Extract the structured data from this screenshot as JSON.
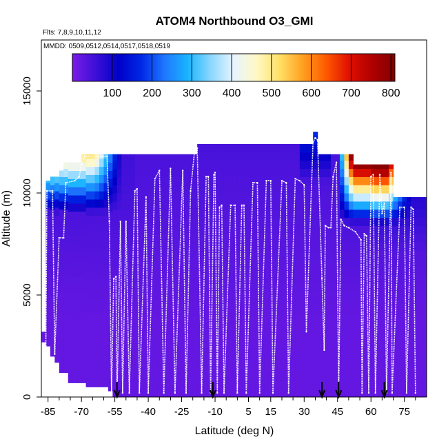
{
  "chart_data": {
    "type": "heatmap",
    "title": "ATOM4 Northbound O3_GMI",
    "flights_label": "Flts: 7,8,9,10,11,12",
    "dates_label": "MMDD: 0509,0512,0514,0517,0518,0519",
    "xlabel": "Latitude (deg N)",
    "ylabel": "Altitude (m)",
    "xlim": [
      -88,
      85
    ],
    "ylim": [
      0,
      17500
    ],
    "x_ticks": [
      -85,
      -70,
      -55,
      -40,
      -25,
      -10,
      5,
      15,
      30,
      45,
      60,
      75
    ],
    "x_tick_labels": [
      "-85",
      "-70",
      "-55",
      "-40",
      "-25",
      "-10",
      "5",
      "15",
      "30",
      "45",
      "60",
      "75"
    ],
    "x_minor_ticks": [
      -80,
      -75,
      -65,
      -60,
      -50,
      -45,
      -35,
      -30,
      -20,
      -15,
      -5,
      0,
      10,
      20,
      25,
      35,
      40,
      50,
      55,
      65,
      70,
      80
    ],
    "y_ticks": [
      0,
      5000,
      10000,
      15000
    ],
    "y_tick_labels": [
      "0",
      "5000",
      "10000",
      "15000"
    ],
    "colorbar": {
      "min": 0,
      "max": 810,
      "ticks": [
        100,
        200,
        300,
        400,
        500,
        600,
        700,
        800
      ],
      "tick_labels": [
        "100",
        "200",
        "300",
        "400",
        "500",
        "600",
        "700",
        "800"
      ],
      "colors": [
        "#7a1ce6",
        "#3d10d8",
        "#0000c8",
        "#0028e6",
        "#1f78ff",
        "#19b4ff",
        "#8ad7ff",
        "#e8f4ff",
        "#fff8c4",
        "#ffe066",
        "#ffa020",
        "#ff5a00",
        "#e01000",
        "#b00000",
        "#800000"
      ]
    },
    "flight_profile": [
      [
        -86,
        2500
      ],
      [
        -85.5,
        10100
      ],
      [
        -83,
        10100
      ],
      [
        -82,
        2100
      ],
      [
        -80,
        7800
      ],
      [
        -78,
        7800
      ],
      [
        -77,
        10500
      ],
      [
        -73,
        10600
      ],
      [
        -71,
        10800
      ],
      [
        -70,
        11400
      ],
      [
        -68.5,
        11800
      ],
      [
        -58.5,
        11800
      ],
      [
        -57.5,
        8600
      ],
      [
        -56.5,
        200
      ],
      [
        -55.5,
        5800
      ],
      [
        -54.5,
        5900
      ],
      [
        -54,
        200
      ],
      [
        -52.5,
        8600
      ],
      [
        -51.5,
        200
      ],
      [
        -50,
        8600
      ],
      [
        -48.5,
        200
      ],
      [
        -46,
        10100
      ],
      [
        -45,
        10200
      ],
      [
        -44,
        200
      ],
      [
        -41,
        9800
      ],
      [
        -40,
        200
      ],
      [
        -37,
        10700
      ],
      [
        -35,
        11100
      ],
      [
        -33,
        200
      ],
      [
        -30,
        11200
      ],
      [
        -28,
        200
      ],
      [
        -24.5,
        11100
      ],
      [
        -23,
        200
      ],
      [
        -21,
        10100
      ],
      [
        -19,
        12300
      ],
      [
        -18,
        12200
      ],
      [
        -16,
        200
      ],
      [
        -14,
        10800
      ],
      [
        -13,
        10800
      ],
      [
        -12,
        200
      ],
      [
        -10.5,
        10900
      ],
      [
        -10,
        11000
      ],
      [
        -9,
        200
      ],
      [
        -8,
        9300
      ],
      [
        -7,
        9400
      ],
      [
        -6,
        200
      ],
      [
        -3,
        9400
      ],
      [
        -1,
        9400
      ],
      [
        0,
        200
      ],
      [
        2,
        9400
      ],
      [
        3,
        9400
      ],
      [
        4,
        200
      ],
      [
        7,
        10500
      ],
      [
        9,
        10500
      ],
      [
        10,
        200
      ],
      [
        13,
        10600
      ],
      [
        15,
        10600
      ],
      [
        16,
        200
      ],
      [
        20,
        10600
      ],
      [
        22,
        10500
      ],
      [
        23,
        200
      ],
      [
        26,
        10700
      ],
      [
        28,
        10600
      ],
      [
        30,
        10400
      ],
      [
        31,
        3200
      ],
      [
        34,
        12500
      ],
      [
        35,
        12700
      ],
      [
        36,
        12600
      ],
      [
        38,
        5800
      ],
      [
        39,
        2300
      ],
      [
        39.5,
        8400
      ],
      [
        41,
        8300
      ],
      [
        42,
        8300
      ],
      [
        43,
        10800
      ],
      [
        44.5,
        11500
      ],
      [
        45.5,
        200
      ],
      [
        46.5,
        8700
      ],
      [
        48,
        8400
      ],
      [
        50,
        8300
      ],
      [
        53,
        8100
      ],
      [
        55.5,
        7700
      ],
      [
        56,
        200
      ],
      [
        57,
        8000
      ],
      [
        58,
        7900
      ],
      [
        59,
        200
      ],
      [
        60,
        10800
      ],
      [
        61,
        10900
      ],
      [
        62,
        200
      ],
      [
        64,
        10900
      ],
      [
        65,
        9000
      ],
      [
        66,
        9500
      ],
      [
        67,
        200
      ],
      [
        69,
        11000
      ],
      [
        69.5,
        200
      ],
      [
        73,
        9300
      ],
      [
        75,
        9300
      ],
      [
        76,
        200
      ],
      [
        78,
        9300
      ],
      [
        79,
        9200
      ],
      [
        80,
        200
      ]
    ],
    "arrow_markers_lat": [
      -54,
      -11,
      38,
      45.5,
      66
    ]
  }
}
